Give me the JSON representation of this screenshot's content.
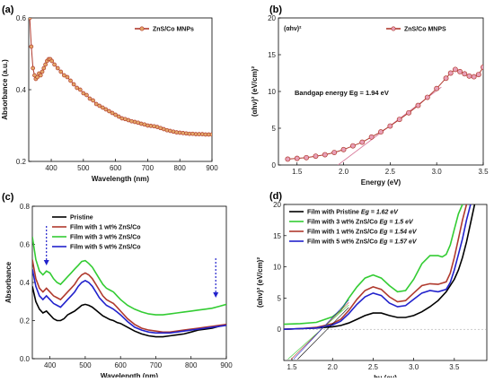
{
  "chart_data": [
    {
      "id": "a",
      "panel_label": "(a)",
      "type": "line",
      "xlabel": "Wavelength (nm)",
      "ylabel": "Absorbance (a.u.)",
      "xlim": [
        330,
        900
      ],
      "ylim": [
        0.2,
        0.6
      ],
      "xticks": [
        400,
        500,
        600,
        700,
        800,
        900
      ],
      "yticks": [
        0.2,
        0.4,
        0.6
      ],
      "legend_position": "top-right",
      "series": [
        {
          "name": "ZnS/Co MNPs",
          "color": "#b03a2e",
          "marker": "circle",
          "x": [
            333,
            338,
            343,
            348,
            352,
            357,
            362,
            367,
            372,
            377,
            382,
            387,
            392,
            397,
            402,
            410,
            420,
            430,
            440,
            450,
            460,
            470,
            480,
            490,
            500,
            510,
            520,
            530,
            540,
            550,
            560,
            570,
            580,
            590,
            600,
            610,
            620,
            630,
            640,
            650,
            660,
            670,
            680,
            690,
            700,
            710,
            720,
            730,
            740,
            750,
            760,
            770,
            780,
            790,
            800,
            810,
            820,
            830,
            840,
            850,
            860,
            870,
            880,
            890,
            900
          ],
          "y": [
            0.6,
            0.52,
            0.46,
            0.44,
            0.43,
            0.435,
            0.445,
            0.44,
            0.45,
            0.46,
            0.47,
            0.48,
            0.485,
            0.485,
            0.48,
            0.47,
            0.46,
            0.45,
            0.44,
            0.435,
            0.425,
            0.415,
            0.405,
            0.4,
            0.39,
            0.385,
            0.375,
            0.37,
            0.36,
            0.355,
            0.35,
            0.345,
            0.34,
            0.335,
            0.33,
            0.325,
            0.32,
            0.318,
            0.315,
            0.312,
            0.31,
            0.308,
            0.305,
            0.303,
            0.3,
            0.299,
            0.298,
            0.296,
            0.293,
            0.29,
            0.287,
            0.285,
            0.283,
            0.281,
            0.28,
            0.279,
            0.278,
            0.277,
            0.277,
            0.276,
            0.276,
            0.276,
            0.275,
            0.275,
            0.275
          ]
        }
      ]
    },
    {
      "id": "b",
      "panel_label": "(b)",
      "type": "line",
      "xlabel": "Energy (eV)",
      "ylabel": "(αhν)² (eV/cm)²",
      "corner_label": "(αhν)²",
      "annotation": "Bandgap energy Eg = 1.94 eV",
      "xlim": [
        1.3,
        3.5
      ],
      "ylim": [
        0,
        20
      ],
      "xticks": [
        1.5,
        2.0,
        2.5,
        3.0,
        3.5
      ],
      "yticks": [
        0,
        5,
        10,
        15,
        20
      ],
      "legend_position": "top-right",
      "fit_line": {
        "x": [
          1.94,
          3.05
        ],
        "y": [
          0,
          10.6
        ]
      },
      "series": [
        {
          "name": "ZnS/Co MNPS",
          "color": "#b03a2e",
          "marker": "circle",
          "x": [
            1.4,
            1.5,
            1.6,
            1.7,
            1.8,
            1.9,
            2.0,
            2.1,
            2.2,
            2.3,
            2.4,
            2.5,
            2.6,
            2.7,
            2.8,
            2.9,
            3.0,
            3.1,
            3.15,
            3.2,
            3.25,
            3.3,
            3.35,
            3.4,
            3.45,
            3.5
          ],
          "y": [
            0.8,
            0.9,
            1.0,
            1.2,
            1.4,
            1.7,
            2.1,
            2.6,
            3.1,
            3.8,
            4.5,
            5.3,
            6.2,
            7.1,
            8.1,
            9.2,
            10.4,
            11.8,
            12.5,
            13.0,
            12.7,
            12.4,
            12.1,
            12.0,
            12.3,
            13.3
          ]
        }
      ]
    },
    {
      "id": "c",
      "panel_label": "(c)",
      "type": "line",
      "xlabel": "Wavelength (nm)",
      "ylabel": "Absorbance",
      "xlim": [
        350,
        900
      ],
      "ylim": [
        0,
        0.8
      ],
      "xticks": [
        400,
        500,
        600,
        700,
        800,
        900
      ],
      "yticks": [
        0.0,
        0.2,
        0.4,
        0.6,
        0.8
      ],
      "legend_position": "top-left",
      "arrows_at_x": [
        390,
        870
      ],
      "series": [
        {
          "name": "Pristine",
          "color": "#000000",
          "x": [
            350,
            360,
            370,
            380,
            390,
            400,
            410,
            420,
            430,
            440,
            450,
            460,
            470,
            480,
            490,
            500,
            510,
            520,
            530,
            540,
            550,
            560,
            570,
            580,
            590,
            600,
            620,
            640,
            660,
            680,
            700,
            720,
            740,
            760,
            780,
            800,
            820,
            840,
            860,
            880,
            900
          ],
          "y": [
            0.38,
            0.3,
            0.26,
            0.24,
            0.25,
            0.23,
            0.21,
            0.2,
            0.2,
            0.21,
            0.23,
            0.24,
            0.25,
            0.265,
            0.28,
            0.285,
            0.28,
            0.27,
            0.255,
            0.24,
            0.225,
            0.215,
            0.205,
            0.2,
            0.19,
            0.185,
            0.165,
            0.145,
            0.13,
            0.12,
            0.115,
            0.115,
            0.12,
            0.125,
            0.13,
            0.14,
            0.15,
            0.155,
            0.16,
            0.17,
            0.18
          ]
        },
        {
          "name": "Film with 1 wt% ZnS/Co",
          "color": "#b03a2e",
          "x": [
            350,
            360,
            370,
            380,
            390,
            400,
            410,
            420,
            430,
            440,
            450,
            460,
            470,
            480,
            490,
            500,
            510,
            520,
            530,
            540,
            550,
            560,
            570,
            580,
            590,
            600,
            620,
            640,
            660,
            680,
            700,
            720,
            740,
            760,
            780,
            800,
            820,
            840,
            860,
            880,
            900
          ],
          "y": [
            0.52,
            0.42,
            0.37,
            0.35,
            0.37,
            0.35,
            0.33,
            0.32,
            0.31,
            0.33,
            0.35,
            0.37,
            0.39,
            0.42,
            0.44,
            0.45,
            0.44,
            0.42,
            0.39,
            0.36,
            0.33,
            0.31,
            0.3,
            0.29,
            0.27,
            0.25,
            0.21,
            0.18,
            0.16,
            0.15,
            0.145,
            0.14,
            0.14,
            0.145,
            0.15,
            0.155,
            0.16,
            0.165,
            0.17,
            0.175,
            0.18
          ]
        },
        {
          "name": "Film with 3 wt% ZnS/Co",
          "color": "#33cc33",
          "x": [
            350,
            360,
            370,
            380,
            390,
            400,
            410,
            420,
            430,
            440,
            450,
            460,
            470,
            480,
            490,
            500,
            510,
            520,
            530,
            540,
            550,
            560,
            570,
            580,
            590,
            600,
            620,
            640,
            660,
            680,
            700,
            720,
            740,
            760,
            780,
            800,
            820,
            840,
            860,
            880,
            900
          ],
          "y": [
            0.64,
            0.52,
            0.46,
            0.44,
            0.46,
            0.45,
            0.42,
            0.4,
            0.39,
            0.41,
            0.43,
            0.45,
            0.47,
            0.49,
            0.51,
            0.515,
            0.5,
            0.48,
            0.45,
            0.42,
            0.39,
            0.37,
            0.36,
            0.35,
            0.33,
            0.31,
            0.28,
            0.26,
            0.245,
            0.235,
            0.23,
            0.23,
            0.235,
            0.24,
            0.245,
            0.25,
            0.255,
            0.26,
            0.265,
            0.275,
            0.285
          ]
        },
        {
          "name": "Film with 5 wt% ZnS/Co",
          "color": "#2222cc",
          "x": [
            350,
            360,
            370,
            380,
            390,
            400,
            410,
            420,
            430,
            440,
            450,
            460,
            470,
            480,
            490,
            500,
            510,
            520,
            530,
            540,
            550,
            560,
            570,
            580,
            590,
            600,
            620,
            640,
            660,
            680,
            700,
            720,
            740,
            760,
            780,
            800,
            820,
            840,
            860,
            880,
            900
          ],
          "y": [
            0.47,
            0.38,
            0.33,
            0.31,
            0.33,
            0.31,
            0.29,
            0.28,
            0.27,
            0.29,
            0.31,
            0.33,
            0.35,
            0.38,
            0.4,
            0.41,
            0.4,
            0.38,
            0.35,
            0.32,
            0.3,
            0.28,
            0.27,
            0.26,
            0.245,
            0.23,
            0.195,
            0.165,
            0.15,
            0.14,
            0.135,
            0.135,
            0.135,
            0.14,
            0.145,
            0.15,
            0.155,
            0.16,
            0.165,
            0.17,
            0.175
          ]
        }
      ]
    },
    {
      "id": "d",
      "panel_label": "(d)",
      "type": "line",
      "xlabel": "hν (ev)",
      "ylabel": "(αhν)² (eV/cm)²",
      "xlim": [
        1.4,
        3.9
      ],
      "ylim": [
        -5,
        20
      ],
      "xticks": [
        1.5,
        2.0,
        2.5,
        3.0,
        3.5
      ],
      "yticks": [
        0,
        5,
        10,
        15,
        20
      ],
      "legend_position": "top-left",
      "series": [
        {
          "name": "Film with Pristine",
          "eg_text": "Eg = 1.62 eV",
          "color": "#000000",
          "x": [
            1.4,
            1.6,
            1.8,
            2.0,
            2.1,
            2.2,
            2.3,
            2.4,
            2.5,
            2.6,
            2.7,
            2.8,
            2.9,
            3.0,
            3.1,
            3.2,
            3.3,
            3.4,
            3.5,
            3.55,
            3.6,
            3.65,
            3.7,
            3.75
          ],
          "y": [
            0,
            0.1,
            0.2,
            0.4,
            0.6,
            1.0,
            1.6,
            2.2,
            2.6,
            2.6,
            2.2,
            1.9,
            1.9,
            2.2,
            2.8,
            3.6,
            4.6,
            6.0,
            8.0,
            9.5,
            11.5,
            14.0,
            17.0,
            20.0
          ]
        },
        {
          "name": "Film with 3 wt% ZnS/Co",
          "eg_text": "Eg = 1.5 eV",
          "color": "#33cc33",
          "x": [
            1.4,
            1.6,
            1.8,
            2.0,
            2.1,
            2.2,
            2.3,
            2.4,
            2.5,
            2.6,
            2.7,
            2.8,
            2.9,
            3.0,
            3.1,
            3.2,
            3.3,
            3.35,
            3.4,
            3.45,
            3.5,
            3.55,
            3.6
          ],
          "y": [
            0.8,
            0.9,
            1.1,
            2.0,
            3.0,
            5.0,
            6.8,
            8.2,
            8.7,
            8.2,
            7.0,
            6.0,
            6.2,
            8.0,
            10.5,
            11.8,
            11.8,
            11.6,
            12.0,
            13.5,
            16.0,
            18.5,
            20.0
          ]
        },
        {
          "name": "Film with 1 wt% ZnS/Co",
          "eg_text": "Eg = 1.54 eV",
          "color": "#b03a2e",
          "x": [
            1.4,
            1.6,
            1.8,
            2.0,
            2.1,
            2.2,
            2.3,
            2.4,
            2.5,
            2.6,
            2.7,
            2.8,
            2.9,
            3.0,
            3.1,
            3.2,
            3.3,
            3.4,
            3.45,
            3.5,
            3.55,
            3.6,
            3.65
          ],
          "y": [
            0,
            0.1,
            0.3,
            0.9,
            1.6,
            3.0,
            4.8,
            6.2,
            6.8,
            6.4,
            5.2,
            4.4,
            4.6,
            5.8,
            7.0,
            7.3,
            7.2,
            7.6,
            9.0,
            11.5,
            14.5,
            17.5,
            20.0
          ]
        },
        {
          "name": "Film with 5 wt% ZnS/Co",
          "eg_text": "Eg = 1.57 eV",
          "color": "#2222cc",
          "x": [
            1.4,
            1.6,
            1.8,
            2.0,
            2.1,
            2.2,
            2.3,
            2.4,
            2.5,
            2.6,
            2.7,
            2.8,
            2.9,
            3.0,
            3.1,
            3.2,
            3.3,
            3.4,
            3.45,
            3.5,
            3.55,
            3.6,
            3.65,
            3.7
          ],
          "y": [
            0,
            0.1,
            0.2,
            0.7,
            1.3,
            2.5,
            4.0,
            5.2,
            5.8,
            5.4,
            4.2,
            3.6,
            3.8,
            4.8,
            5.8,
            6.2,
            6.0,
            6.4,
            7.5,
            9.5,
            12.0,
            14.5,
            17.5,
            20.0
          ]
        }
      ]
    }
  ]
}
